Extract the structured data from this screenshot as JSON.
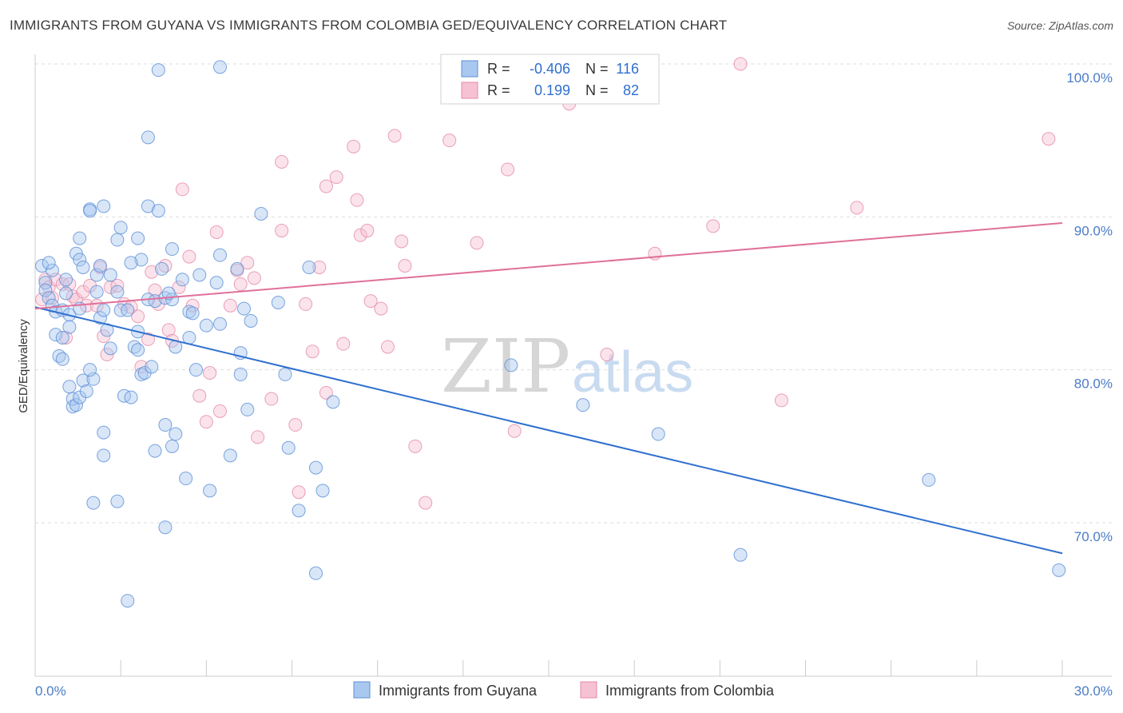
{
  "header": {
    "title": "IMMIGRANTS FROM GUYANA VS IMMIGRANTS FROM COLOMBIA GED/EQUIVALENCY CORRELATION CHART",
    "source": "Source: ZipAtlas.com"
  },
  "colors": {
    "guyana_fill": "#a9c8ef",
    "guyana_stroke": "#5b8fd6",
    "guyana_line": "#2f6fcf",
    "colombia_fill": "#f6c1d2",
    "colombia_stroke": "#e58aa9",
    "colombia_line": "#e0709a",
    "grid": "#dddddd",
    "axis_text": "#4a7cc8"
  },
  "legend": {
    "rows": [
      {
        "r_label": "R =",
        "r_value": "-0.406",
        "n_label": "N =",
        "n_value": "116"
      },
      {
        "r_label": "R =",
        "r_value": "0.199",
        "n_label": "N =",
        "n_value": "82"
      }
    ]
  },
  "bottom_legend": {
    "items": [
      "Immigrants from Guyana",
      "Immigrants from Colombia"
    ]
  },
  "watermark": {
    "zip": "ZIP",
    "atlas": "atlas"
  },
  "chart_data": {
    "type": "scatter",
    "title": "IMMIGRANTS FROM GUYANA VS IMMIGRANTS FROM COLOMBIA GED/EQUIVALENCY CORRELATION CHART",
    "xlabel": "",
    "ylabel": "GED/Equivalency",
    "xlim": [
      0,
      30
    ],
    "ylim": [
      60,
      102
    ],
    "x_tick_labels": [
      "0.0%",
      "30.0%"
    ],
    "y_ticks": [
      70,
      80,
      90,
      100
    ],
    "y_tick_labels": [
      "70.0%",
      "80.0%",
      "90.0%",
      "100.0%"
    ],
    "grid": true,
    "legend_position": "top-center",
    "series": [
      {
        "name": "Immigrants from Guyana",
        "r": -0.406,
        "n": 116,
        "trend": {
          "x": [
            0,
            30
          ],
          "y": [
            84.1,
            68.0
          ]
        },
        "points": [
          [
            0.2,
            86.8
          ],
          [
            0.3,
            85.7
          ],
          [
            0.3,
            85.2
          ],
          [
            0.4,
            84.7
          ],
          [
            0.5,
            86.5
          ],
          [
            0.5,
            84.2
          ],
          [
            0.6,
            83.8
          ],
          [
            0.6,
            82.3
          ],
          [
            0.7,
            80.9
          ],
          [
            0.8,
            80.7
          ],
          [
            0.8,
            83.9
          ],
          [
            0.8,
            82.1
          ],
          [
            0.9,
            85.9
          ],
          [
            1.0,
            83.6
          ],
          [
            1.0,
            78.9
          ],
          [
            1.0,
            82.8
          ],
          [
            1.1,
            77.6
          ],
          [
            1.1,
            78.1
          ],
          [
            1.2,
            87.6
          ],
          [
            1.2,
            77.7
          ],
          [
            1.3,
            78.2
          ],
          [
            1.3,
            87.2
          ],
          [
            1.3,
            88.6
          ],
          [
            1.4,
            86.7
          ],
          [
            1.4,
            79.3
          ],
          [
            1.5,
            78.6
          ],
          [
            1.6,
            90.5
          ],
          [
            1.6,
            90.4
          ],
          [
            1.7,
            71.3
          ],
          [
            1.7,
            79.4
          ],
          [
            1.8,
            86.2
          ],
          [
            1.8,
            85.1
          ],
          [
            1.9,
            83.4
          ],
          [
            1.9,
            86.8
          ],
          [
            2.0,
            90.7
          ],
          [
            2.0,
            83.9
          ],
          [
            2.0,
            75.9
          ],
          [
            2.0,
            74.4
          ],
          [
            2.2,
            86.2
          ],
          [
            2.2,
            81.4
          ],
          [
            2.4,
            85.1
          ],
          [
            2.4,
            88.5
          ],
          [
            2.4,
            71.4
          ],
          [
            2.5,
            89.3
          ],
          [
            2.5,
            83.9
          ],
          [
            2.6,
            78.3
          ],
          [
            2.7,
            83.9
          ],
          [
            2.7,
            64.9
          ],
          [
            2.8,
            78.2
          ],
          [
            2.9,
            81.5
          ],
          [
            3.0,
            82.5
          ],
          [
            3.0,
            88.6
          ],
          [
            3.0,
            81.3
          ],
          [
            3.1,
            87.2
          ],
          [
            3.1,
            79.7
          ],
          [
            3.2,
            79.8
          ],
          [
            3.3,
            95.2
          ],
          [
            3.3,
            84.6
          ],
          [
            3.3,
            90.7
          ],
          [
            3.4,
            80.2
          ],
          [
            3.5,
            84.5
          ],
          [
            3.5,
            74.7
          ],
          [
            3.6,
            90.4
          ],
          [
            3.6,
            99.6
          ],
          [
            3.7,
            86.6
          ],
          [
            3.8,
            84.7
          ],
          [
            3.8,
            76.4
          ],
          [
            3.8,
            69.7
          ],
          [
            4.0,
            87.9
          ],
          [
            4.0,
            84.6
          ],
          [
            4.0,
            75.0
          ],
          [
            4.1,
            75.8
          ],
          [
            4.1,
            81.5
          ],
          [
            4.3,
            85.9
          ],
          [
            4.4,
            72.9
          ],
          [
            4.5,
            83.8
          ],
          [
            4.5,
            82.1
          ],
          [
            4.6,
            83.7
          ],
          [
            4.8,
            86.2
          ],
          [
            5.0,
            82.9
          ],
          [
            5.1,
            72.1
          ],
          [
            5.3,
            85.7
          ],
          [
            5.4,
            87.5
          ],
          [
            5.4,
            83.0
          ],
          [
            5.7,
            74.4
          ],
          [
            5.9,
            86.6
          ],
          [
            6.0,
            81.1
          ],
          [
            6.0,
            79.7
          ],
          [
            6.2,
            77.4
          ],
          [
            6.3,
            83.2
          ],
          [
            6.6,
            90.2
          ],
          [
            7.1,
            84.4
          ],
          [
            7.3,
            79.7
          ],
          [
            7.4,
            74.9
          ],
          [
            7.7,
            70.8
          ],
          [
            8.0,
            86.7
          ],
          [
            8.2,
            73.6
          ],
          [
            8.2,
            66.7
          ],
          [
            8.4,
            72.1
          ],
          [
            8.7,
            77.9
          ],
          [
            13.9,
            80.3
          ],
          [
            16.0,
            77.7
          ],
          [
            18.2,
            75.8
          ],
          [
            20.6,
            67.9
          ],
          [
            26.1,
            72.8
          ],
          [
            29.9,
            66.9
          ],
          [
            5.4,
            99.8
          ],
          [
            1.3,
            84.0
          ],
          [
            0.9,
            85.0
          ],
          [
            2.1,
            82.6
          ],
          [
            1.6,
            80.0
          ],
          [
            0.4,
            87.0
          ],
          [
            3.9,
            85.0
          ],
          [
            6.1,
            84.0
          ],
          [
            4.7,
            80.0
          ],
          [
            2.8,
            87.0
          ]
        ]
      },
      {
        "name": "Immigrants from Colombia",
        "r": 0.199,
        "n": 82,
        "trend": {
          "x": [
            0,
            30
          ],
          "y": [
            84.0,
            89.6
          ]
        },
        "points": [
          [
            0.2,
            84.6
          ],
          [
            0.3,
            85.9
          ],
          [
            0.4,
            85.4
          ],
          [
            0.5,
            84.7
          ],
          [
            0.6,
            85.9
          ],
          [
            0.8,
            85.6
          ],
          [
            0.9,
            82.1
          ],
          [
            1.0,
            85.6
          ],
          [
            1.1,
            84.8
          ],
          [
            1.2,
            84.6
          ],
          [
            1.4,
            85.1
          ],
          [
            1.5,
            84.2
          ],
          [
            1.6,
            85.5
          ],
          [
            1.8,
            84.2
          ],
          [
            1.9,
            86.7
          ],
          [
            2.0,
            82.2
          ],
          [
            2.1,
            81.0
          ],
          [
            2.2,
            85.4
          ],
          [
            2.4,
            85.5
          ],
          [
            2.6,
            84.3
          ],
          [
            2.8,
            84.1
          ],
          [
            3.0,
            83.5
          ],
          [
            3.1,
            80.2
          ],
          [
            3.3,
            82.0
          ],
          [
            3.4,
            86.4
          ],
          [
            3.5,
            85.2
          ],
          [
            3.6,
            84.3
          ],
          [
            3.8,
            86.8
          ],
          [
            3.9,
            82.6
          ],
          [
            4.0,
            81.9
          ],
          [
            4.2,
            85.4
          ],
          [
            4.3,
            91.8
          ],
          [
            4.5,
            87.4
          ],
          [
            4.6,
            84.2
          ],
          [
            4.8,
            78.3
          ],
          [
            5.0,
            76.6
          ],
          [
            5.1,
            79.8
          ],
          [
            5.3,
            89.0
          ],
          [
            5.4,
            77.3
          ],
          [
            5.7,
            84.2
          ],
          [
            5.9,
            86.5
          ],
          [
            6.0,
            85.6
          ],
          [
            6.2,
            87.0
          ],
          [
            6.4,
            86.0
          ],
          [
            6.5,
            75.6
          ],
          [
            6.9,
            78.1
          ],
          [
            7.2,
            93.6
          ],
          [
            7.2,
            89.1
          ],
          [
            7.6,
            76.4
          ],
          [
            7.7,
            72.0
          ],
          [
            7.9,
            84.3
          ],
          [
            8.1,
            81.2
          ],
          [
            8.3,
            86.7
          ],
          [
            8.5,
            92.0
          ],
          [
            8.5,
            78.5
          ],
          [
            8.8,
            92.6
          ],
          [
            9.0,
            81.7
          ],
          [
            9.3,
            94.6
          ],
          [
            9.4,
            91.1
          ],
          [
            9.5,
            88.8
          ],
          [
            9.7,
            89.1
          ],
          [
            9.8,
            84.5
          ],
          [
            10.1,
            84.0
          ],
          [
            10.3,
            81.5
          ],
          [
            10.5,
            95.3
          ],
          [
            10.7,
            88.4
          ],
          [
            10.8,
            86.8
          ],
          [
            11.1,
            75.0
          ],
          [
            11.4,
            71.3
          ],
          [
            12.1,
            95.0
          ],
          [
            12.9,
            88.3
          ],
          [
            13.8,
            93.1
          ],
          [
            14.0,
            76.0
          ],
          [
            14.8,
            100.2
          ],
          [
            15.6,
            97.4
          ],
          [
            16.7,
            81.0
          ],
          [
            18.1,
            87.6
          ],
          [
            19.8,
            89.4
          ],
          [
            20.6,
            100.0
          ],
          [
            21.8,
            78.0
          ],
          [
            24.0,
            90.6
          ],
          [
            29.6,
            95.1
          ]
        ]
      }
    ]
  }
}
